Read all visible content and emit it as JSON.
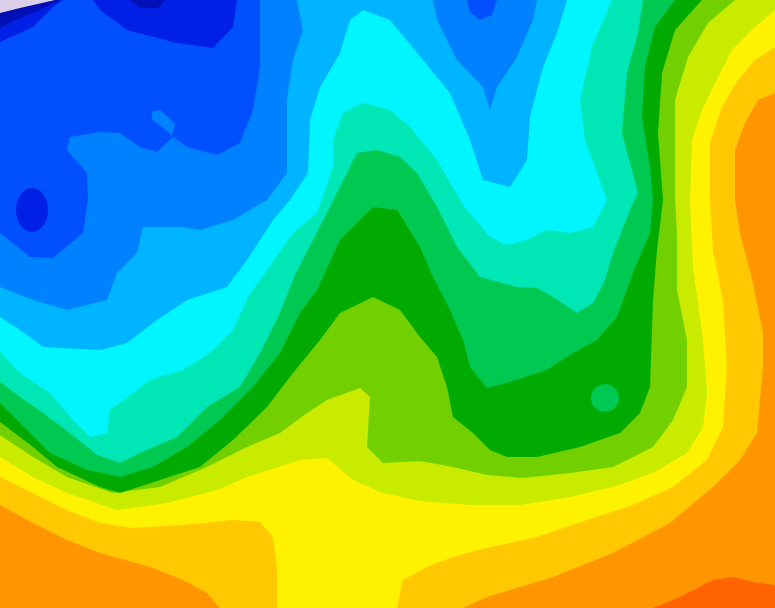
{
  "map": {
    "type": "filled-contour-field",
    "colors": {
      "red_orange": "#ff6400",
      "orange": "#ff9600",
      "gold": "#ffc800",
      "yellow": "#fff200",
      "lime": "#c8eb00",
      "yellow_green": "#72d000",
      "green": "#00aa00",
      "medium_green": "#00c850",
      "aquamarine": "#00e6b4",
      "cyan": "#00f5ff",
      "light_blue": "#00b4ff",
      "medium_blue": "#0082ff",
      "blue": "#0050ff",
      "deep_blue": "#0020e6",
      "navy": "#0010b4",
      "lavender": "#dcd0e8"
    }
  }
}
